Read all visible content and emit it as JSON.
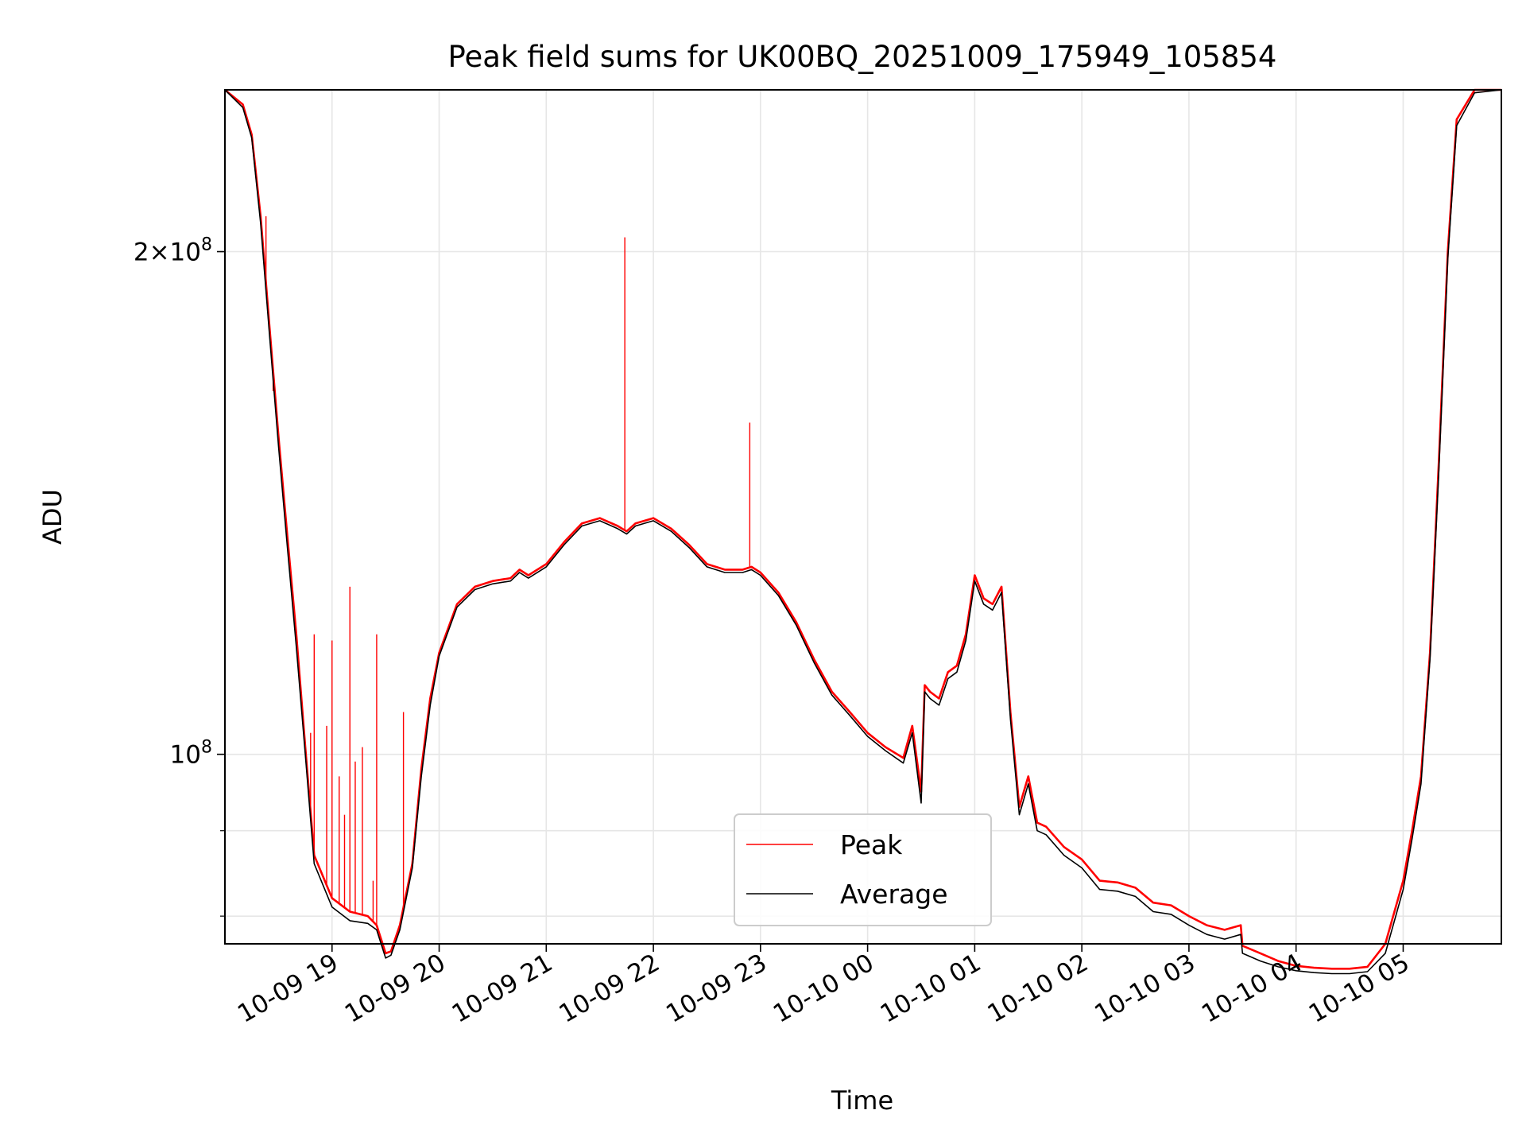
{
  "chart_data": {
    "type": "line",
    "title": "Peak field sums for UK00BQ_20251009_175949_105854",
    "xlabel": "Time",
    "ylabel": "ADU",
    "yscale": "log",
    "xlim": [
      "2025-10-09 18:00",
      "2025-10-10 05:55"
    ],
    "ylim": [
      77000000,
      250000000
    ],
    "x_ticks": [
      "10-09 19",
      "10-09 20",
      "10-09 21",
      "10-09 22",
      "10-09 23",
      "10-10 00",
      "10-10 01",
      "10-10 02",
      "10-10 03",
      "10-10 04",
      "10-10 05"
    ],
    "x_tick_times": [
      "2025-10-09 19:00",
      "2025-10-09 20:00",
      "2025-10-09 21:00",
      "2025-10-09 22:00",
      "2025-10-09 23:00",
      "2025-10-10 00:00",
      "2025-10-10 01:00",
      "2025-10-10 02:00",
      "2025-10-10 03:00",
      "2025-10-10 04:00",
      "2025-10-10 05:00"
    ],
    "y_major_ticks": [
      {
        "value": 100000000,
        "mantissa": "",
        "exponent": "8"
      },
      {
        "value": 200000000,
        "mantissa": "2",
        "exponent": "8"
      }
    ],
    "y_minor_ticks": [
      80000000,
      90000000,
      100000000,
      200000000
    ],
    "grid": true,
    "legend_position": "lower-center",
    "series": [
      {
        "name": "Peak",
        "color": "#ff0000",
        "x": [
          "2025-10-09 18:00",
          "2025-10-09 18:10",
          "2025-10-09 18:15",
          "2025-10-09 18:20",
          "2025-10-09 18:25",
          "2025-10-09 18:30",
          "2025-10-09 18:35",
          "2025-10-09 18:40",
          "2025-10-09 18:45",
          "2025-10-09 18:50",
          "2025-10-09 19:00",
          "2025-10-09 19:10",
          "2025-10-09 19:20",
          "2025-10-09 19:25",
          "2025-10-09 19:30",
          "2025-10-09 19:33",
          "2025-10-09 19:38",
          "2025-10-09 19:45",
          "2025-10-09 19:50",
          "2025-10-09 19:55",
          "2025-10-09 20:00",
          "2025-10-09 20:10",
          "2025-10-09 20:20",
          "2025-10-09 20:30",
          "2025-10-09 20:40",
          "2025-10-09 20:45",
          "2025-10-09 20:50",
          "2025-10-09 21:00",
          "2025-10-09 21:10",
          "2025-10-09 21:20",
          "2025-10-09 21:30",
          "2025-10-09 21:40",
          "2025-10-09 21:45",
          "2025-10-09 21:50",
          "2025-10-09 22:00",
          "2025-10-09 22:10",
          "2025-10-09 22:20",
          "2025-10-09 22:30",
          "2025-10-09 22:40",
          "2025-10-09 22:50",
          "2025-10-09 22:55",
          "2025-10-09 23:00",
          "2025-10-09 23:10",
          "2025-10-09 23:20",
          "2025-10-09 23:30",
          "2025-10-09 23:40",
          "2025-10-09 23:50",
          "2025-10-10 00:00",
          "2025-10-10 00:10",
          "2025-10-10 00:20",
          "2025-10-10 00:25",
          "2025-10-10 00:30",
          "2025-10-10 00:32",
          "2025-10-10 00:35",
          "2025-10-10 00:40",
          "2025-10-10 00:45",
          "2025-10-10 00:50",
          "2025-10-10 00:55",
          "2025-10-10 01:00",
          "2025-10-10 01:05",
          "2025-10-10 01:10",
          "2025-10-10 01:15",
          "2025-10-10 01:20",
          "2025-10-10 01:25",
          "2025-10-10 01:30",
          "2025-10-10 01:35",
          "2025-10-10 01:40",
          "2025-10-10 01:50",
          "2025-10-10 02:00",
          "2025-10-10 02:10",
          "2025-10-10 02:20",
          "2025-10-10 02:30",
          "2025-10-10 02:40",
          "2025-10-10 02:50",
          "2025-10-10 03:00",
          "2025-10-10 03:10",
          "2025-10-10 03:20",
          "2025-10-10 03:29",
          "2025-10-10 03:30",
          "2025-10-10 03:40",
          "2025-10-10 03:50",
          "2025-10-10 04:00",
          "2025-10-10 04:10",
          "2025-10-10 04:20",
          "2025-10-10 04:30",
          "2025-10-10 04:40",
          "2025-10-10 04:50",
          "2025-10-10 05:00",
          "2025-10-10 05:05",
          "2025-10-10 05:10",
          "2025-10-10 05:15",
          "2025-10-10 05:20",
          "2025-10-10 05:25",
          "2025-10-10 05:30",
          "2025-10-10 05:40",
          "2025-10-10 05:55"
        ],
        "y": [
          250000000,
          245000000,
          235000000,
          210000000,
          180000000,
          155000000,
          135000000,
          118000000,
          101000000,
          87000000,
          82000000,
          80500000,
          80000000,
          79000000,
          76000000,
          76200000,
          79000000,
          86000000,
          98000000,
          108000000,
          115000000,
          123000000,
          126000000,
          127000000,
          127500000,
          129000000,
          128000000,
          130000000,
          134000000,
          137500000,
          138500000,
          137000000,
          136000000,
          137500000,
          138500000,
          136500000,
          133500000,
          130000000,
          129000000,
          129000000,
          129500000,
          128500000,
          125000000,
          120000000,
          114000000,
          109000000,
          106000000,
          103000000,
          101000000,
          99500000,
          104000000,
          95000000,
          110000000,
          109000000,
          108000000,
          112000000,
          113000000,
          118000000,
          128000000,
          124000000,
          123000000,
          126000000,
          106000000,
          93000000,
          97000000,
          91000000,
          90500000,
          88000000,
          86500000,
          84000000,
          83800000,
          83200000,
          81500000,
          81200000,
          80000000,
          79000000,
          78500000,
          79000000,
          76800000,
          76000000,
          75200000,
          74700000,
          74500000,
          74400000,
          74400000,
          74600000,
          77000000,
          84000000,
          90000000,
          97000000,
          115000000,
          150000000,
          200000000,
          240000000,
          250000000,
          250000000
        ],
        "spikes": [
          {
            "x": "2025-10-09 18:23",
            "y": 210000000
          },
          {
            "x": "2025-10-09 18:27",
            "y": 165000000
          },
          {
            "x": "2025-10-09 18:48",
            "y": 103000000
          },
          {
            "x": "2025-10-09 18:50",
            "y": 118000000
          },
          {
            "x": "2025-10-09 18:57",
            "y": 104000000
          },
          {
            "x": "2025-10-09 19:00",
            "y": 117000000
          },
          {
            "x": "2025-10-09 19:04",
            "y": 97000000
          },
          {
            "x": "2025-10-09 19:07",
            "y": 92000000
          },
          {
            "x": "2025-10-09 19:10",
            "y": 126000000
          },
          {
            "x": "2025-10-09 19:13",
            "y": 99000000
          },
          {
            "x": "2025-10-09 19:17",
            "y": 101000000
          },
          {
            "x": "2025-10-09 19:23",
            "y": 84000000
          },
          {
            "x": "2025-10-09 19:25",
            "y": 118000000
          },
          {
            "x": "2025-10-09 19:40",
            "y": 106000000
          },
          {
            "x": "2025-10-09 21:44",
            "y": 204000000
          },
          {
            "x": "2025-10-09 22:54",
            "y": 158000000
          }
        ]
      },
      {
        "name": "Average",
        "color": "#000000",
        "x": [
          "2025-10-09 18:00",
          "2025-10-09 18:10",
          "2025-10-09 18:15",
          "2025-10-09 18:20",
          "2025-10-09 18:25",
          "2025-10-09 18:30",
          "2025-10-09 18:35",
          "2025-10-09 18:40",
          "2025-10-09 18:45",
          "2025-10-09 18:50",
          "2025-10-09 19:00",
          "2025-10-09 19:10",
          "2025-10-09 19:20",
          "2025-10-09 19:25",
          "2025-10-09 19:30",
          "2025-10-09 19:33",
          "2025-10-09 19:38",
          "2025-10-09 19:45",
          "2025-10-09 19:50",
          "2025-10-09 19:55",
          "2025-10-09 20:00",
          "2025-10-09 20:10",
          "2025-10-09 20:20",
          "2025-10-09 20:30",
          "2025-10-09 20:40",
          "2025-10-09 20:45",
          "2025-10-09 20:50",
          "2025-10-09 21:00",
          "2025-10-09 21:10",
          "2025-10-09 21:20",
          "2025-10-09 21:30",
          "2025-10-09 21:40",
          "2025-10-09 21:45",
          "2025-10-09 21:50",
          "2025-10-09 22:00",
          "2025-10-09 22:10",
          "2025-10-09 22:20",
          "2025-10-09 22:30",
          "2025-10-09 22:40",
          "2025-10-09 22:50",
          "2025-10-09 22:55",
          "2025-10-09 23:00",
          "2025-10-09 23:10",
          "2025-10-09 23:20",
          "2025-10-09 23:30",
          "2025-10-09 23:40",
          "2025-10-09 23:50",
          "2025-10-10 00:00",
          "2025-10-10 00:10",
          "2025-10-10 00:20",
          "2025-10-10 00:25",
          "2025-10-10 00:30",
          "2025-10-10 00:32",
          "2025-10-10 00:35",
          "2025-10-10 00:40",
          "2025-10-10 00:45",
          "2025-10-10 00:50",
          "2025-10-10 00:55",
          "2025-10-10 01:00",
          "2025-10-10 01:05",
          "2025-10-10 01:10",
          "2025-10-10 01:15",
          "2025-10-10 01:20",
          "2025-10-10 01:25",
          "2025-10-10 01:30",
          "2025-10-10 01:35",
          "2025-10-10 01:40",
          "2025-10-10 01:50",
          "2025-10-10 02:00",
          "2025-10-10 02:10",
          "2025-10-10 02:20",
          "2025-10-10 02:30",
          "2025-10-10 02:40",
          "2025-10-10 02:50",
          "2025-10-10 03:00",
          "2025-10-10 03:10",
          "2025-10-10 03:20",
          "2025-10-10 03:29",
          "2025-10-10 03:30",
          "2025-10-10 03:40",
          "2025-10-10 03:50",
          "2025-10-10 04:00",
          "2025-10-10 04:10",
          "2025-10-10 04:20",
          "2025-10-10 04:30",
          "2025-10-10 04:40",
          "2025-10-10 04:50",
          "2025-10-10 05:00",
          "2025-10-10 05:05",
          "2025-10-10 05:10",
          "2025-10-10 05:15",
          "2025-10-10 05:20",
          "2025-10-10 05:25",
          "2025-10-10 05:30",
          "2025-10-10 05:40",
          "2025-10-10 05:55"
        ],
        "y": [
          250000000,
          244000000,
          234000000,
          208000000,
          178000000,
          153000000,
          133000000,
          116000000,
          100000000,
          86000000,
          81000000,
          79500000,
          79200000,
          78500000,
          75500000,
          75800000,
          78500000,
          85500000,
          97000000,
          107000000,
          114500000,
          122500000,
          125500000,
          126500000,
          127000000,
          128500000,
          127500000,
          129500000,
          133500000,
          137000000,
          138000000,
          136500000,
          135500000,
          137000000,
          138000000,
          136000000,
          133000000,
          129500000,
          128500000,
          128500000,
          129000000,
          128000000,
          124500000,
          119500000,
          113500000,
          108500000,
          105500000,
          102500000,
          100500000,
          98800000,
          103000000,
          93500000,
          109000000,
          108000000,
          107000000,
          111000000,
          112000000,
          117000000,
          127000000,
          123000000,
          122000000,
          125000000,
          105000000,
          92000000,
          96000000,
          90000000,
          89500000,
          87000000,
          85500000,
          83000000,
          82800000,
          82200000,
          80500000,
          80200000,
          79000000,
          78000000,
          77500000,
          78000000,
          76000000,
          75200000,
          74600000,
          74200000,
          74000000,
          73900000,
          73900000,
          74100000,
          76000000,
          83000000,
          89000000,
          96000000,
          114000000,
          148000000,
          198000000,
          238000000,
          249000000,
          250000000
        ]
      }
    ]
  }
}
